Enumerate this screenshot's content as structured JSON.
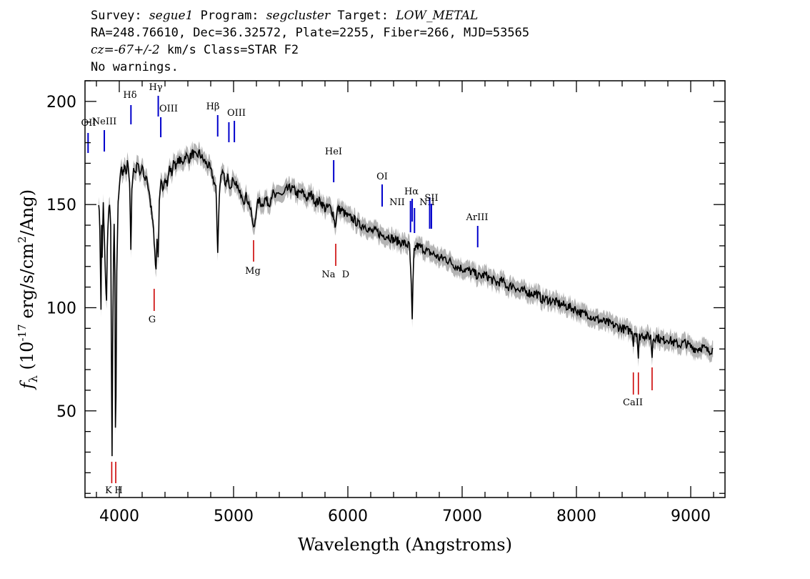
{
  "header": {
    "survey_label": "Survey:",
    "survey": "segue1",
    "program_label": "Program:",
    "program": "segcluster",
    "target_label": "Target:",
    "target": "LOW_METAL",
    "line2": "RA=248.76610, Dec=36.32572, Plate=2255, Fiber=266, MJD=53565",
    "cz_label": "cz=-67+/-2",
    "cz_rest": " km/s Class=STAR F2",
    "line4": "No warnings."
  },
  "colors": {
    "spectrum": "#000000",
    "error_band": "#b4b4b4",
    "emission": "#0000cc",
    "absorption": "#cc0000"
  },
  "chart_data": {
    "type": "line",
    "xlabel": "Wavelength (Angstroms)",
    "ylabel": "f_λ (10^-17 erg/s/cm^2/Ang)",
    "xlim": [
      3700,
      9300
    ],
    "ylim": [
      8,
      210
    ],
    "x_ticks": [
      4000,
      5000,
      6000,
      7000,
      8000,
      9000
    ],
    "y_ticks": [
      50,
      100,
      150,
      200
    ],
    "series": [
      {
        "values": [
          [
            3820,
            152
          ],
          [
            3830,
            138
          ],
          [
            3835,
            120
          ],
          [
            3840,
            98
          ],
          [
            3845,
            140
          ],
          [
            3850,
            125
          ],
          [
            3860,
            150
          ],
          [
            3870,
            132
          ],
          [
            3880,
            112
          ],
          [
            3889,
            104
          ],
          [
            3895,
            128
          ],
          [
            3905,
            146
          ],
          [
            3915,
            150
          ],
          [
            3925,
            138
          ],
          [
            3933,
            60
          ],
          [
            3937,
            28
          ],
          [
            3942,
            80
          ],
          [
            3950,
            125
          ],
          [
            3955,
            140
          ],
          [
            3962,
            115
          ],
          [
            3966,
            40
          ],
          [
            3971,
            55
          ],
          [
            3978,
            118
          ],
          [
            3990,
            150
          ],
          [
            4000,
            160
          ],
          [
            4015,
            168
          ],
          [
            4030,
            163
          ],
          [
            4045,
            170
          ],
          [
            4060,
            165
          ],
          [
            4075,
            172
          ],
          [
            4090,
            160
          ],
          [
            4101,
            128
          ],
          [
            4110,
            158
          ],
          [
            4125,
            168
          ],
          [
            4140,
            165
          ],
          [
            4160,
            170
          ],
          [
            4180,
            164
          ],
          [
            4200,
            168
          ],
          [
            4220,
            162
          ],
          [
            4240,
            164
          ],
          [
            4260,
            155
          ],
          [
            4280,
            148
          ],
          [
            4300,
            140
          ],
          [
            4310,
            126
          ],
          [
            4322,
            118
          ],
          [
            4330,
            135
          ],
          [
            4340,
            124
          ],
          [
            4350,
            150
          ],
          [
            4365,
            160
          ],
          [
            4380,
            158
          ],
          [
            4400,
            164
          ],
          [
            4420,
            160
          ],
          [
            4440,
            168
          ],
          [
            4460,
            165
          ],
          [
            4480,
            172
          ],
          [
            4500,
            168
          ],
          [
            4520,
            172
          ],
          [
            4550,
            170
          ],
          [
            4580,
            174
          ],
          [
            4610,
            172
          ],
          [
            4640,
            175
          ],
          [
            4670,
            173
          ],
          [
            4700,
            175
          ],
          [
            4730,
            172
          ],
          [
            4760,
            170
          ],
          [
            4790,
            168
          ],
          [
            4820,
            163
          ],
          [
            4845,
            158
          ],
          [
            4861,
            128
          ],
          [
            4875,
            155
          ],
          [
            4890,
            164
          ],
          [
            4910,
            166
          ],
          [
            4930,
            160
          ],
          [
            4950,
            164
          ],
          [
            4970,
            157
          ],
          [
            4990,
            162
          ],
          [
            5010,
            158
          ],
          [
            5030,
            160
          ],
          [
            5050,
            155
          ],
          [
            5070,
            156
          ],
          [
            5090,
            152
          ],
          [
            5110,
            154
          ],
          [
            5140,
            150
          ],
          [
            5160,
            144
          ],
          [
            5168,
            140
          ],
          [
            5175,
            138
          ],
          [
            5183,
            140
          ],
          [
            5200,
            148
          ],
          [
            5220,
            152
          ],
          [
            5250,
            150
          ],
          [
            5280,
            153
          ],
          [
            5310,
            150
          ],
          [
            5340,
            156
          ],
          [
            5370,
            153
          ],
          [
            5400,
            156
          ],
          [
            5430,
            154
          ],
          [
            5460,
            157
          ],
          [
            5500,
            158
          ],
          [
            5530,
            157
          ],
          [
            5560,
            155
          ],
          [
            5600,
            156
          ],
          [
            5640,
            153
          ],
          [
            5680,
            155
          ],
          [
            5720,
            151
          ],
          [
            5760,
            152
          ],
          [
            5800,
            148
          ],
          [
            5840,
            149
          ],
          [
            5870,
            146
          ],
          [
            5889,
            140
          ],
          [
            5896,
            142
          ],
          [
            5910,
            148
          ],
          [
            5950,
            147
          ],
          [
            6000,
            144
          ],
          [
            6050,
            143
          ],
          [
            6100,
            140
          ],
          [
            6150,
            140
          ],
          [
            6200,
            137
          ],
          [
            6250,
            137
          ],
          [
            6300,
            135
          ],
          [
            6350,
            135
          ],
          [
            6400,
            133
          ],
          [
            6450,
            132
          ],
          [
            6500,
            131
          ],
          [
            6540,
            130
          ],
          [
            6555,
            110
          ],
          [
            6563,
            93
          ],
          [
            6570,
            112
          ],
          [
            6580,
            128
          ],
          [
            6600,
            130
          ],
          [
            6650,
            129
          ],
          [
            6700,
            127
          ],
          [
            6750,
            126
          ],
          [
            6800,
            124
          ],
          [
            6850,
            124
          ],
          [
            6900,
            122
          ],
          [
            6950,
            120
          ],
          [
            7000,
            119
          ],
          [
            7050,
            118
          ],
          [
            7100,
            117
          ],
          [
            7150,
            115
          ],
          [
            7200,
            116
          ],
          [
            7250,
            114
          ],
          [
            7300,
            112
          ],
          [
            7350,
            113
          ],
          [
            7400,
            110
          ],
          [
            7450,
            111
          ],
          [
            7500,
            108
          ],
          [
            7550,
            108
          ],
          [
            7600,
            107
          ],
          [
            7650,
            107
          ],
          [
            7700,
            104
          ],
          [
            7750,
            104
          ],
          [
            7800,
            103
          ],
          [
            7850,
            102
          ],
          [
            7900,
            101
          ],
          [
            7950,
            100
          ],
          [
            8000,
            99
          ],
          [
            8050,
            97
          ],
          [
            8100,
            97
          ],
          [
            8150,
            95
          ],
          [
            8200,
            94
          ],
          [
            8250,
            93
          ],
          [
            8300,
            92
          ],
          [
            8350,
            91
          ],
          [
            8400,
            90
          ],
          [
            8450,
            89
          ],
          [
            8490,
            89
          ],
          [
            8498,
            82
          ],
          [
            8505,
            88
          ],
          [
            8530,
            88
          ],
          [
            8542,
            74
          ],
          [
            8550,
            86
          ],
          [
            8580,
            87
          ],
          [
            8620,
            86
          ],
          [
            8650,
            86
          ],
          [
            8662,
            76
          ],
          [
            8670,
            85
          ],
          [
            8700,
            86
          ],
          [
            8750,
            84
          ],
          [
            8800,
            85
          ],
          [
            8850,
            83
          ],
          [
            8900,
            82
          ],
          [
            8950,
            83
          ],
          [
            9000,
            81
          ],
          [
            9050,
            80
          ],
          [
            9100,
            81
          ],
          [
            9150,
            79
          ],
          [
            9195,
            80
          ]
        ]
      }
    ],
    "emission_lines": [
      {
        "label": "OII",
        "wave": 3727
      },
      {
        "label": "NeIII",
        "wave": 3869
      },
      {
        "label": "Hδ",
        "wave": 4102
      },
      {
        "label": "Hγ",
        "wave": 4341
      },
      {
        "label": "OIII",
        "wave": 4363
      },
      {
        "label": "Hβ",
        "wave": 4861
      },
      {
        "label": "OIII",
        "wave": 4959
      },
      {
        "label": "OIII",
        "wave": 5007
      },
      {
        "label": "HeI",
        "wave": 5876
      },
      {
        "label": "OI",
        "wave": 6300
      },
      {
        "label": "NII",
        "wave": 6548
      },
      {
        "label": "Hα",
        "wave": 6563
      },
      {
        "label": "NII",
        "wave": 6583
      },
      {
        "label": "SII",
        "wave": 6716
      },
      {
        "label": "SII",
        "wave": 6731
      },
      {
        "label": "ArIII",
        "wave": 7136
      }
    ],
    "absorption_lines": [
      {
        "label": "K",
        "wave": 3934
      },
      {
        "label": "H",
        "wave": 3969
      },
      {
        "label": "G",
        "wave": 4305
      },
      {
        "label": "Mg",
        "wave": 5175
      },
      {
        "label": "Na",
        "wave": 5894
      },
      {
        "label": "D",
        "wave": 5894
      },
      {
        "label": "CaII",
        "wave": 8498
      },
      {
        "label": "CaII",
        "wave": 8542
      },
      {
        "label": "CaII",
        "wave": 8662
      }
    ]
  }
}
